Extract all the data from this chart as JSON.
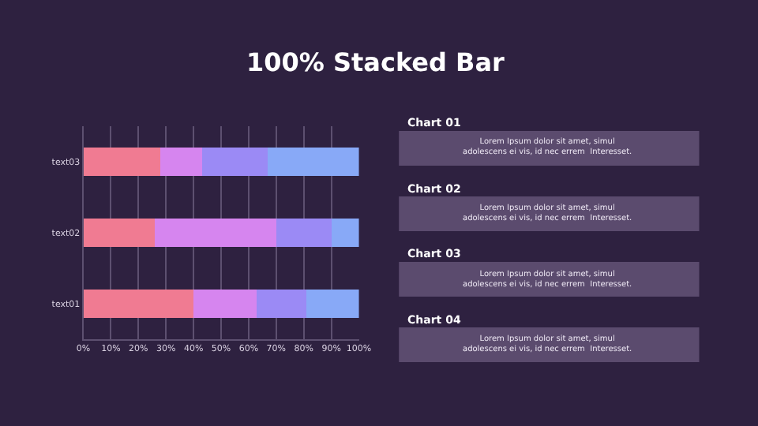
{
  "chart_data": [
    {
      "type": "bar",
      "title": "100% Stacked Bar",
      "orientation": "horizontal",
      "stacked": true,
      "categories": [
        "text03",
        "text02",
        "text01"
      ],
      "series": [
        {
          "color": "#f07b92",
          "values": [
            28,
            26,
            40
          ]
        },
        {
          "color": "#d685ef",
          "values": [
            15,
            44,
            23
          ]
        },
        {
          "color": "#9b8af5",
          "values": [
            24,
            20,
            18
          ]
        },
        {
          "color": "#88a9f7",
          "values": [
            33,
            10,
            19
          ]
        }
      ],
      "xlim": [
        0,
        100
      ],
      "xticks": [
        {
          "value": 0,
          "label": "0%"
        },
        {
          "value": 10,
          "label": "10%"
        },
        {
          "value": 20,
          "label": "20%"
        },
        {
          "value": 30,
          "label": "30%"
        },
        {
          "value": 40,
          "label": "40%"
        },
        {
          "value": 50,
          "label": "50%"
        },
        {
          "value": 60,
          "label": "60%"
        },
        {
          "value": 70,
          "label": "70%"
        },
        {
          "value": 80,
          "label": "80%"
        },
        {
          "value": 90,
          "label": "90%"
        },
        {
          "value": 100,
          "label": "100%"
        }
      ],
      "grid": "x"
    },
    {
      "type": "other",
      "annotations": [
        "Chart 01",
        "Lorem Ipsum dolor sit amet, simul\nadolescens ei vis, id nec errem  Interesset.",
        "Chart 02",
        "Lorem Ipsum dolor sit amet, simul\nadolescens ei vis, id nec errem  Interesset.",
        "Chart 03",
        "Lorem Ipsum dolor sit amet, simul\nadolescens ei vis, id nec errem  Interesset.",
        "Chart 04",
        "Lorem Ipsum dolor sit amet, simul\nadolescens ei vis, id nec errem  Interesset."
      ]
    }
  ]
}
